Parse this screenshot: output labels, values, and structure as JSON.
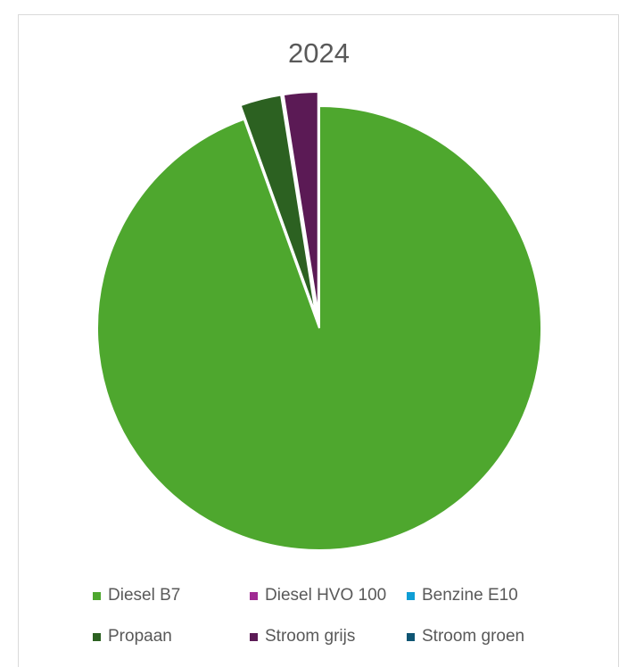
{
  "chart_data": {
    "type": "pie",
    "title": "2024",
    "categories": [
      "Diesel B7",
      "Diesel HVO 100",
      "Benzine E10",
      "Propaan",
      "Stroom grijs",
      "Stroom groen"
    ],
    "values": [
      94.5,
      0,
      0,
      3.0,
      2.5,
      0
    ],
    "colors": [
      "#4ea72e",
      "#a02b93",
      "#0f9ed5",
      "#2c6121",
      "#5b1a55",
      "#0e5573"
    ],
    "exploded": [
      "Diesel B7"
    ],
    "legend_position": "bottom"
  }
}
